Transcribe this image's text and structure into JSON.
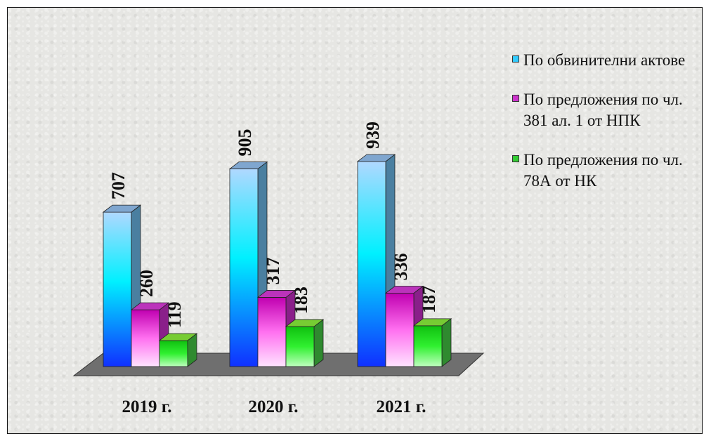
{
  "chart_data": {
    "type": "bar",
    "categories": [
      "2019 г.",
      "2020 г.",
      "2021 г."
    ],
    "series": [
      {
        "name": "По обвинителни актове",
        "values": [
          707,
          905,
          939
        ],
        "color": "#33ccff"
      },
      {
        "name": "По предложения по чл. 381 ал. 1 от НПК",
        "values": [
          260,
          317,
          336
        ],
        "color": "#cc33cc"
      },
      {
        "name": "По предложения по чл. 78А от НК",
        "values": [
          119,
          183,
          187
        ],
        "color": "#33cc33"
      }
    ],
    "title": "",
    "xlabel": "",
    "ylabel": "",
    "ylim": [
      0,
      1000
    ],
    "legend_position": "right",
    "grid": false,
    "style": "3d-bar"
  }
}
